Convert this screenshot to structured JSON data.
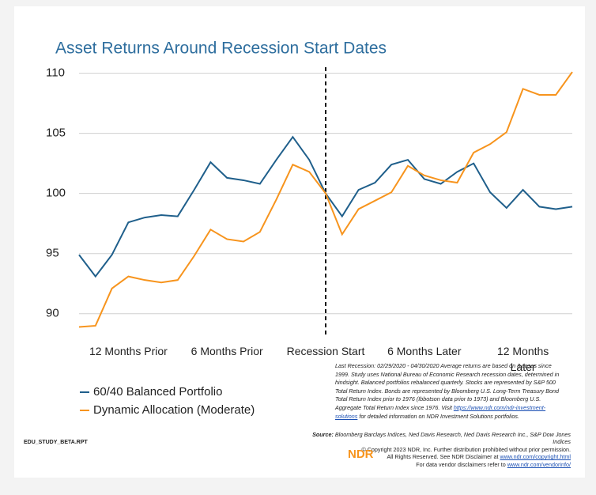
{
  "chart_data": {
    "type": "line",
    "title": "Asset Returns Around Recession Start Dates",
    "x": [
      -15,
      -14,
      -13,
      -12,
      -11,
      -10,
      -9,
      -8,
      -7,
      -6,
      -5,
      -4,
      -3,
      -2,
      -1,
      0,
      1,
      2,
      3,
      4,
      5,
      6,
      7,
      8,
      9,
      10,
      11,
      12,
      13,
      14,
      15
    ],
    "xlim": [
      -15,
      15
    ],
    "xticks": [
      {
        "value": -12,
        "label": "12 Months Prior"
      },
      {
        "value": -6,
        "label": "6 Months Prior"
      },
      {
        "value": 0,
        "label": "Recession Start"
      },
      {
        "value": 6,
        "label": "6 Months Later"
      },
      {
        "value": 12,
        "label": "12 Months Later"
      }
    ],
    "ylim": [
      88.8,
      110.5
    ],
    "yticks": [
      90,
      95,
      100,
      105,
      110
    ],
    "grid": true,
    "series": [
      {
        "name": "60/40 Balanced Portfolio",
        "color": "#1f5f8b",
        "values": [
          94.9,
          93.1,
          94.9,
          97.6,
          98.0,
          98.2,
          98.1,
          100.3,
          102.6,
          101.3,
          101.1,
          100.8,
          102.8,
          104.7,
          102.8,
          100.0,
          98.1,
          100.3,
          100.9,
          102.4,
          102.8,
          101.2,
          100.8,
          101.8,
          102.5,
          100.1,
          98.8,
          100.3,
          98.9,
          98.7,
          98.9
        ]
      },
      {
        "name": "Dynamic Allocation (Moderate)",
        "color": "#f7941d",
        "values": [
          88.9,
          89.0,
          92.1,
          93.1,
          92.8,
          92.6,
          92.8,
          94.8,
          97.0,
          96.2,
          96.0,
          96.8,
          99.5,
          102.4,
          101.8,
          100.0,
          96.6,
          98.7,
          99.4,
          100.1,
          102.3,
          101.5,
          101.1,
          100.9,
          103.4,
          104.1,
          105.1,
          108.7,
          108.2,
          108.2,
          110.1
        ]
      }
    ],
    "notes": {
      "text": "Last Recession: 02/29/2020 - 04/30/2020 Average returns are based on 3 cases since 1999. Study uses National Bureau of Economic Research recession dates, determined in hindsight. Balanced portfolios rebalanced quarterly. Stocks are represented by S&P 500 Total Return Index. Bonds are represented by Bloomberg U.S. Long-Term Treasury Bond Total Return Index prior to 1976 (Ibbotson data prior to 1973) and Bloomberg U.S. Aggregate Total Return Index since 1976. Visit",
      "link": "https://www.ndr.com/ndr-investment-solutions",
      "after": "for detailed information on NDR Investment Solutions portfolios."
    },
    "source": {
      "label": "Source:",
      "text": "Bloomberg Barclays Indices, Ned Davis Research, Ned Davis Research Inc., S&P Dow Jones Indices",
      "copyright": "© Copyright 2023 NDR, Inc. Further distribution prohibited without prior permission.",
      "rights": "All Rights Reserved. See NDR Disclaimer at",
      "rights_link": "www.ndr.com/copyright.html",
      "vendor": "For data vendor disclaimers refer to",
      "vendor_link": "www.ndr.com/vendorinfo/"
    },
    "footer": "EDU_STUDY_BETA.RPT",
    "logo": "NDR"
  }
}
